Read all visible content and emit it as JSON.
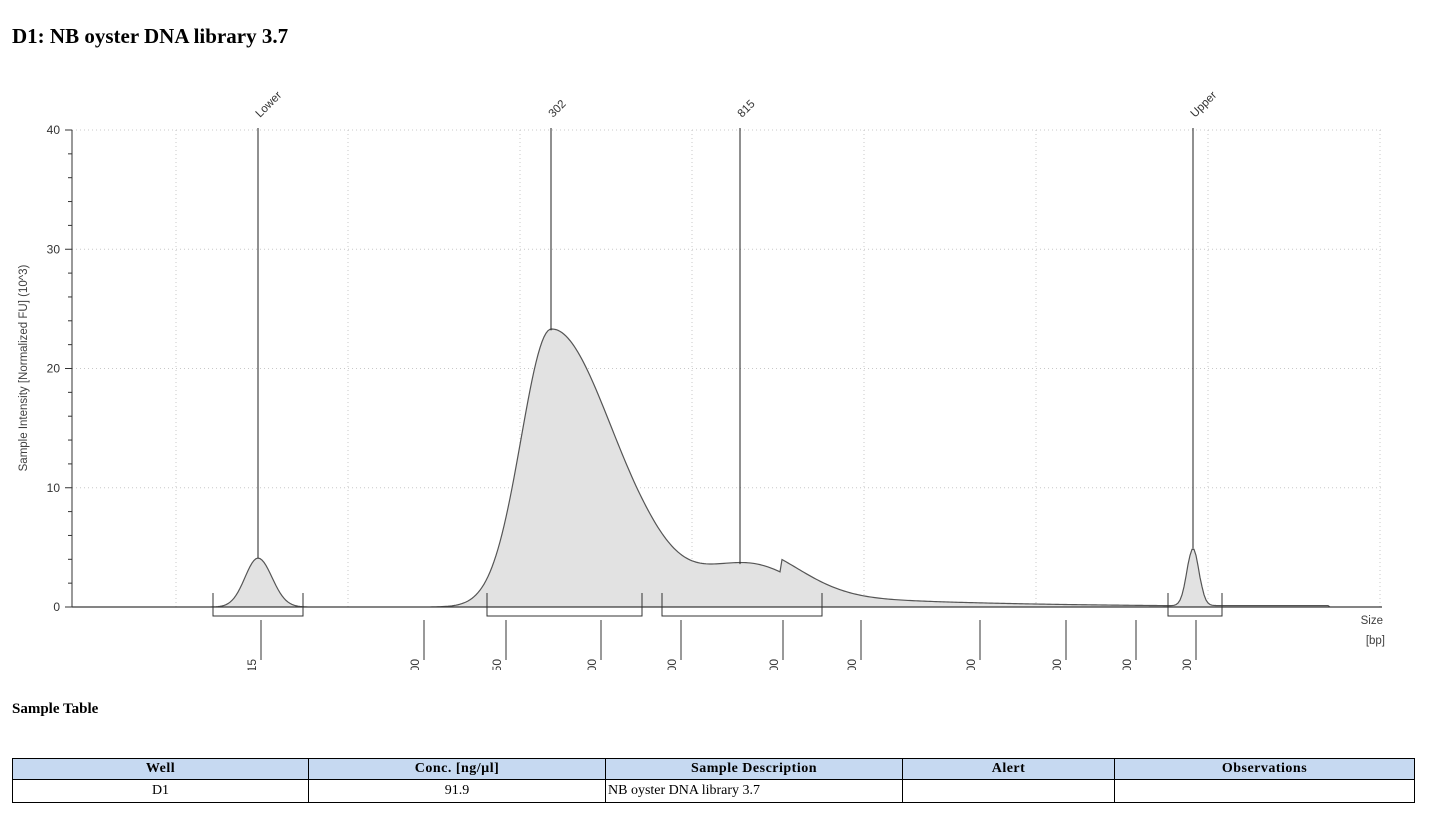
{
  "page": {
    "title": "D1: NB oyster DNA library 3.7"
  },
  "chart_data": {
    "type": "area",
    "ylabel": "Sample Intensity [Normalized FU] (10^3)",
    "xlabel": "Size [bp]",
    "xlabel_lines": [
      "Size",
      "[bp]"
    ],
    "ylim": [
      0,
      40
    ],
    "yticks": [
      0,
      10,
      20,
      30,
      40
    ],
    "x_axis_scale": "nonlinear (ladder-calibrated bp)",
    "xticks": [
      "15",
      "100",
      "250",
      "400",
      "600",
      "1000",
      "1500",
      "2500",
      "3500",
      "5000",
      "10000"
    ],
    "grid": "dotted",
    "peaks": [
      {
        "label": "Lower",
        "size_bp": 15,
        "height": 4.1
      },
      {
        "label": "302",
        "size_bp": 302,
        "height": 23.2
      },
      {
        "label": "815",
        "size_bp": 815,
        "height": 3.6
      },
      {
        "label": "Upper",
        "size_bp": 10000,
        "height": 4.9
      }
    ],
    "regions_bp": [
      [
        250,
        600
      ],
      [
        600,
        1500
      ]
    ],
    "fill_color": "#e2e2e2",
    "line_color": "#555555"
  },
  "sample_table": {
    "title": "Sample Table",
    "columns": [
      "Well",
      "Conc. [ng/µl]",
      "Sample Description",
      "Alert",
      "Observations"
    ],
    "rows": [
      [
        "D1",
        "91.9",
        "NB oyster DNA library 3.7",
        "",
        ""
      ]
    ],
    "header_color": "#c6d9f1"
  }
}
